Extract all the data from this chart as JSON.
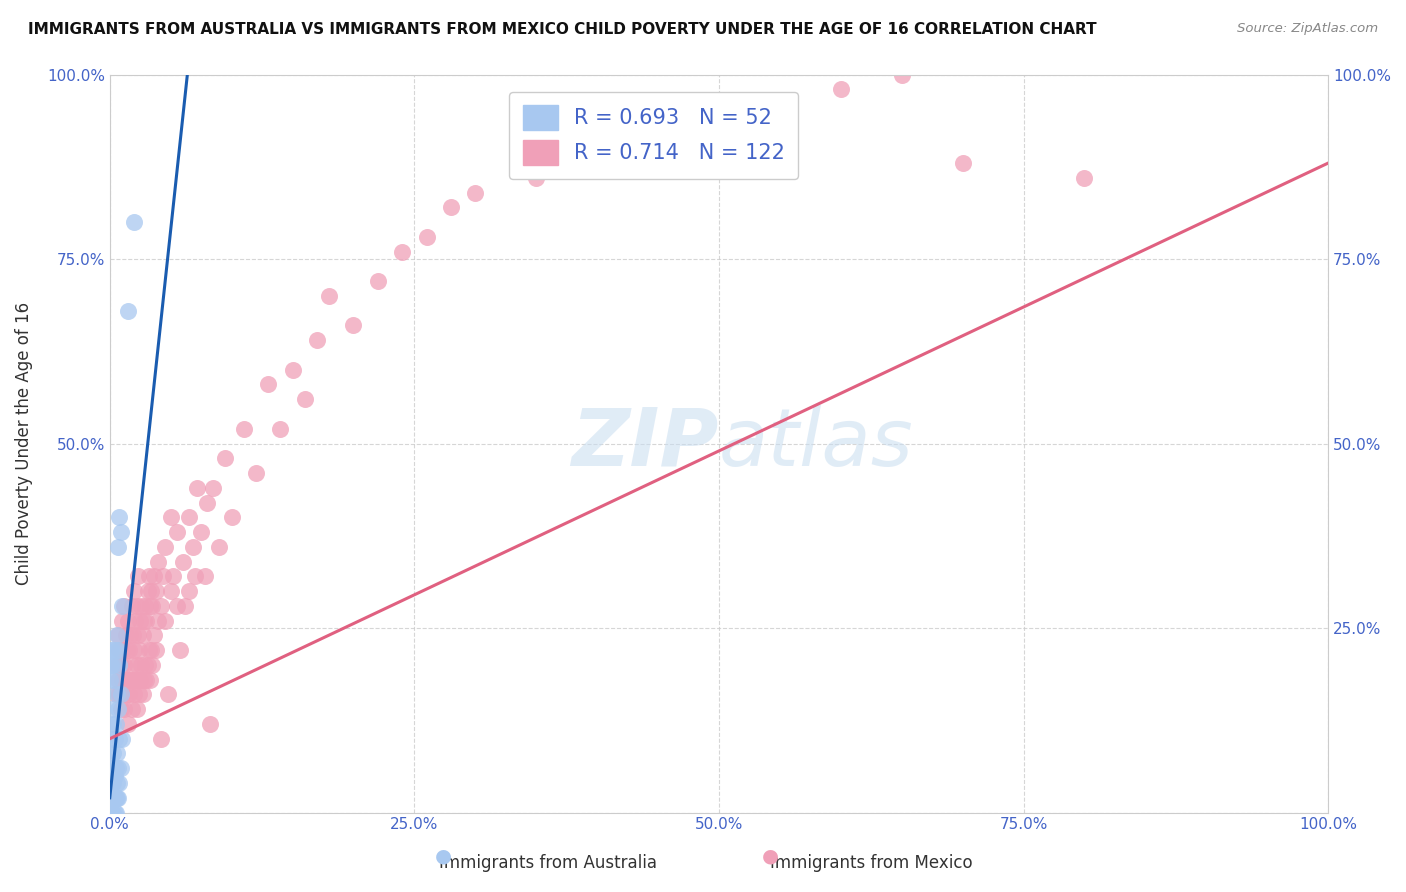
{
  "title": "IMMIGRANTS FROM AUSTRALIA VS IMMIGRANTS FROM MEXICO CHILD POVERTY UNDER THE AGE OF 16 CORRELATION CHART",
  "source": "Source: ZipAtlas.com",
  "ylabel": "Child Poverty Under the Age of 16",
  "watermark": "ZIPAtlas",
  "australia": {
    "R": 0.693,
    "N": 52,
    "color": "#a8c8f0",
    "line_color": "#1a5cb0",
    "label": "Immigrants from Australia",
    "x": [
      0.0,
      0.0,
      0.0,
      0.001,
      0.001,
      0.001,
      0.001,
      0.001,
      0.002,
      0.002,
      0.002,
      0.002,
      0.002,
      0.002,
      0.002,
      0.003,
      0.003,
      0.003,
      0.003,
      0.003,
      0.003,
      0.004,
      0.004,
      0.004,
      0.004,
      0.004,
      0.005,
      0.005,
      0.005,
      0.005,
      0.005,
      0.006,
      0.006,
      0.006,
      0.006,
      0.006,
      0.007,
      0.007,
      0.007,
      0.007,
      0.007,
      0.008,
      0.008,
      0.008,
      0.008,
      0.009,
      0.009,
      0.009,
      0.01,
      0.01,
      0.015,
      0.02
    ],
    "y": [
      0.18,
      0.2,
      0.22,
      0.0,
      0.02,
      0.04,
      0.06,
      0.2,
      0.0,
      0.02,
      0.04,
      0.06,
      0.1,
      0.14,
      0.22,
      0.0,
      0.02,
      0.04,
      0.08,
      0.12,
      0.2,
      0.0,
      0.02,
      0.05,
      0.1,
      0.18,
      0.0,
      0.02,
      0.06,
      0.12,
      0.22,
      0.02,
      0.04,
      0.08,
      0.16,
      0.24,
      0.02,
      0.06,
      0.14,
      0.22,
      0.36,
      0.04,
      0.1,
      0.2,
      0.4,
      0.06,
      0.16,
      0.38,
      0.1,
      0.28,
      0.68,
      0.8
    ]
  },
  "mexico": {
    "R": 0.714,
    "N": 122,
    "color": "#f0a0b8",
    "line_color": "#e06080",
    "label": "Immigrants from Mexico",
    "x": [
      0.005,
      0.006,
      0.007,
      0.007,
      0.008,
      0.008,
      0.009,
      0.009,
      0.01,
      0.01,
      0.011,
      0.011,
      0.012,
      0.012,
      0.012,
      0.013,
      0.013,
      0.014,
      0.014,
      0.015,
      0.015,
      0.015,
      0.016,
      0.016,
      0.017,
      0.017,
      0.018,
      0.018,
      0.018,
      0.019,
      0.019,
      0.02,
      0.02,
      0.02,
      0.021,
      0.021,
      0.022,
      0.022,
      0.022,
      0.023,
      0.023,
      0.023,
      0.024,
      0.024,
      0.025,
      0.025,
      0.026,
      0.026,
      0.027,
      0.027,
      0.028,
      0.028,
      0.029,
      0.029,
      0.03,
      0.03,
      0.031,
      0.031,
      0.032,
      0.032,
      0.033,
      0.033,
      0.034,
      0.034,
      0.035,
      0.035,
      0.036,
      0.036,
      0.038,
      0.038,
      0.04,
      0.04,
      0.042,
      0.042,
      0.044,
      0.045,
      0.045,
      0.048,
      0.05,
      0.05,
      0.052,
      0.055,
      0.055,
      0.058,
      0.06,
      0.062,
      0.065,
      0.065,
      0.068,
      0.07,
      0.072,
      0.075,
      0.078,
      0.08,
      0.082,
      0.085,
      0.09,
      0.095,
      0.1,
      0.11,
      0.12,
      0.13,
      0.14,
      0.15,
      0.16,
      0.17,
      0.18,
      0.2,
      0.22,
      0.24,
      0.26,
      0.28,
      0.3,
      0.35,
      0.4,
      0.45,
      0.5,
      0.55,
      0.6,
      0.65,
      0.7,
      0.8
    ],
    "y": [
      0.16,
      0.2,
      0.18,
      0.24,
      0.16,
      0.22,
      0.14,
      0.2,
      0.18,
      0.26,
      0.16,
      0.22,
      0.14,
      0.2,
      0.28,
      0.18,
      0.24,
      0.16,
      0.22,
      0.12,
      0.18,
      0.26,
      0.16,
      0.22,
      0.18,
      0.24,
      0.14,
      0.2,
      0.28,
      0.18,
      0.24,
      0.16,
      0.22,
      0.3,
      0.18,
      0.26,
      0.14,
      0.2,
      0.28,
      0.18,
      0.24,
      0.32,
      0.16,
      0.22,
      0.18,
      0.26,
      0.2,
      0.28,
      0.16,
      0.24,
      0.18,
      0.26,
      0.2,
      0.28,
      0.18,
      0.26,
      0.2,
      0.3,
      0.22,
      0.32,
      0.18,
      0.28,
      0.22,
      0.3,
      0.2,
      0.28,
      0.24,
      0.32,
      0.22,
      0.3,
      0.26,
      0.34,
      0.1,
      0.28,
      0.32,
      0.26,
      0.36,
      0.16,
      0.3,
      0.4,
      0.32,
      0.28,
      0.38,
      0.22,
      0.34,
      0.28,
      0.4,
      0.3,
      0.36,
      0.32,
      0.44,
      0.38,
      0.32,
      0.42,
      0.12,
      0.44,
      0.36,
      0.48,
      0.4,
      0.52,
      0.46,
      0.58,
      0.52,
      0.6,
      0.56,
      0.64,
      0.7,
      0.66,
      0.72,
      0.76,
      0.78,
      0.82,
      0.84,
      0.86,
      0.88,
      0.9,
      0.92,
      0.96,
      0.98,
      1.0,
      0.88,
      0.86
    ]
  },
  "xlim": [
    0.0,
    1.0
  ],
  "ylim": [
    -0.05,
    1.05
  ],
  "plot_ylim": [
    0.0,
    1.0
  ],
  "xticks": [
    0.0,
    0.25,
    0.5,
    0.75,
    1.0
  ],
  "xticklabels": [
    "0.0%",
    "25.0%",
    "50.0%",
    "75.0%",
    "100.0%"
  ],
  "yticks_left": [
    0.0,
    0.25,
    0.5,
    0.75,
    1.0
  ],
  "yticklabels_left": [
    "",
    "",
    "50.0%",
    "75.0%",
    "100.0%"
  ],
  "yticks_right": [
    0.25,
    0.5,
    0.75,
    1.0
  ],
  "yticklabels_right": [
    "25.0%",
    "50.0%",
    "75.0%",
    "100.0%"
  ],
  "grid_color": "#cccccc",
  "background_color": "#ffffff",
  "au_line_x": [
    0.0,
    0.065
  ],
  "au_line_y": [
    0.02,
    1.02
  ],
  "mx_line_x": [
    0.0,
    1.0
  ],
  "mx_line_y": [
    0.1,
    0.88
  ]
}
